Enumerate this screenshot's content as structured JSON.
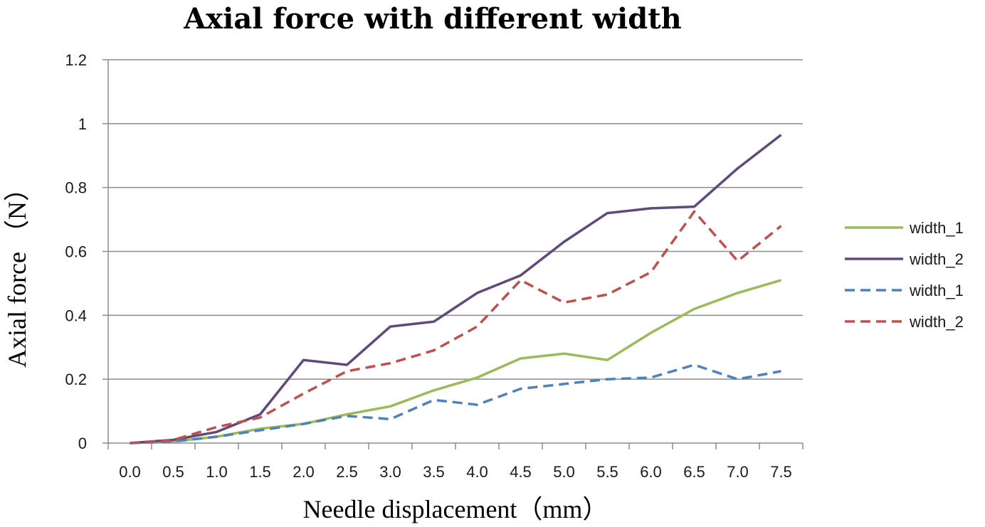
{
  "chart_data": {
    "type": "line",
    "title": "Axial force with different width",
    "xlabel": "Needle displacement（mm）",
    "ylabel": "Axial force （N）",
    "categories": [
      "0.0",
      "0.5",
      "1.0",
      "1.5",
      "2.0",
      "2.5",
      "3.0",
      "3.5",
      "4.0",
      "4.5",
      "5.0",
      "5.5",
      "6.0",
      "6.5",
      "7.0",
      "7.5"
    ],
    "ylim": [
      0,
      1.2
    ],
    "yticks": [
      "0",
      "0.2",
      "0.4",
      "0.6",
      "0.8",
      "1",
      "1.2"
    ],
    "ytick_values": [
      0,
      0.2,
      0.4,
      0.6,
      0.8,
      1.0,
      1.2
    ],
    "grid": true,
    "legend_position": "right",
    "series": [
      {
        "name": "width_1",
        "color": "#9bbb59",
        "style": "solid",
        "values": [
          0,
          0.005,
          0.02,
          0.045,
          0.06,
          0.09,
          0.115,
          0.165,
          0.205,
          0.265,
          0.28,
          0.26,
          0.345,
          0.42,
          0.47,
          0.51
        ]
      },
      {
        "name": "width_2",
        "color": "#604a7b",
        "style": "solid",
        "values": [
          0,
          0.01,
          0.035,
          0.09,
          0.26,
          0.245,
          0.365,
          0.38,
          0.47,
          0.525,
          0.63,
          0.72,
          0.735,
          0.74,
          0.86,
          0.965
        ]
      },
      {
        "name": "width_1",
        "color": "#4f81bd",
        "style": "dashed",
        "values": [
          0,
          0.005,
          0.02,
          0.04,
          0.06,
          0.085,
          0.075,
          0.135,
          0.12,
          0.17,
          0.185,
          0.2,
          0.205,
          0.245,
          0.2,
          0.225
        ]
      },
      {
        "name": "width_2",
        "color": "#c0504d",
        "style": "dashed",
        "values": [
          0,
          0.01,
          0.05,
          0.08,
          0.155,
          0.225,
          0.25,
          0.29,
          0.365,
          0.51,
          0.44,
          0.465,
          0.535,
          0.725,
          0.57,
          0.68
        ]
      }
    ]
  }
}
